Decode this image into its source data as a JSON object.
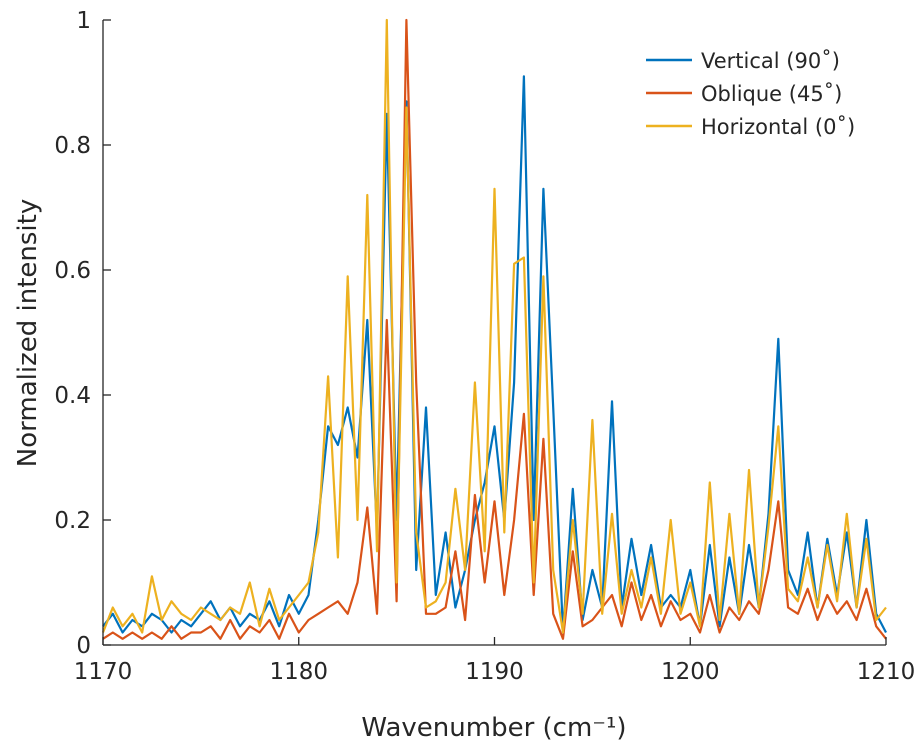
{
  "chart_data": {
    "type": "line",
    "xlabel": "Wavenumber (cm⁻¹)",
    "ylabel": "Normalized intensity",
    "xlim": [
      1170,
      1210
    ],
    "ylim": [
      0,
      1
    ],
    "x_ticks": [
      "1170",
      "1180",
      "1190",
      "1200",
      "1210"
    ],
    "y_ticks": [
      "0",
      "0.2",
      "0.4",
      "0.6",
      "0.8",
      "1"
    ],
    "grid": false,
    "legend_position": "top-right",
    "x": [
      1170,
      1170.5,
      1171,
      1171.5,
      1172,
      1172.5,
      1173,
      1173.5,
      1174,
      1174.5,
      1175,
      1175.5,
      1176,
      1176.5,
      1177,
      1177.5,
      1178,
      1178.5,
      1179,
      1179.5,
      1180,
      1180.5,
      1181,
      1181.5,
      1182,
      1182.5,
      1183,
      1183.5,
      1184,
      1184.5,
      1185,
      1185.5,
      1186,
      1186.5,
      1187,
      1187.5,
      1188,
      1188.5,
      1189,
      1189.5,
      1190,
      1190.5,
      1191,
      1191.5,
      1192,
      1192.5,
      1193,
      1193.5,
      1194,
      1194.5,
      1195,
      1195.5,
      1196,
      1196.5,
      1197,
      1197.5,
      1198,
      1198.5,
      1199,
      1199.5,
      1200,
      1200.5,
      1201,
      1201.5,
      1202,
      1202.5,
      1203,
      1203.5,
      1204,
      1204.5,
      1205,
      1205.5,
      1206,
      1206.5,
      1207,
      1207.5,
      1208,
      1208.5,
      1209,
      1209.5,
      1210
    ],
    "series": [
      {
        "name": "Vertical (90˚)",
        "color": "#0072BD",
        "values": [
          0.03,
          0.05,
          0.02,
          0.04,
          0.03,
          0.05,
          0.04,
          0.02,
          0.04,
          0.03,
          0.05,
          0.07,
          0.04,
          0.06,
          0.03,
          0.05,
          0.04,
          0.07,
          0.03,
          0.08,
          0.05,
          0.08,
          0.2,
          0.35,
          0.32,
          0.38,
          0.3,
          0.52,
          0.18,
          0.85,
          0.2,
          0.87,
          0.12,
          0.38,
          0.08,
          0.18,
          0.06,
          0.12,
          0.2,
          0.26,
          0.35,
          0.2,
          0.42,
          0.91,
          0.2,
          0.73,
          0.38,
          0.02,
          0.25,
          0.04,
          0.12,
          0.06,
          0.39,
          0.06,
          0.17,
          0.08,
          0.16,
          0.06,
          0.08,
          0.06,
          0.12,
          0.03,
          0.16,
          0.03,
          0.14,
          0.05,
          0.16,
          0.06,
          0.21,
          0.49,
          0.12,
          0.08,
          0.18,
          0.06,
          0.17,
          0.08,
          0.18,
          0.06,
          0.2,
          0.05,
          0.02
        ]
      },
      {
        "name": "Oblique (45˚)",
        "color": "#D95319",
        "values": [
          0.01,
          0.02,
          0.01,
          0.02,
          0.01,
          0.02,
          0.01,
          0.03,
          0.01,
          0.02,
          0.02,
          0.03,
          0.01,
          0.04,
          0.01,
          0.03,
          0.02,
          0.04,
          0.01,
          0.05,
          0.02,
          0.04,
          0.05,
          0.06,
          0.07,
          0.05,
          0.1,
          0.22,
          0.05,
          0.52,
          0.07,
          1.0,
          0.42,
          0.05,
          0.05,
          0.06,
          0.15,
          0.04,
          0.24,
          0.1,
          0.23,
          0.08,
          0.2,
          0.37,
          0.08,
          0.33,
          0.05,
          0.01,
          0.15,
          0.03,
          0.04,
          0.06,
          0.08,
          0.03,
          0.1,
          0.04,
          0.08,
          0.03,
          0.07,
          0.04,
          0.05,
          0.02,
          0.08,
          0.02,
          0.06,
          0.04,
          0.07,
          0.05,
          0.12,
          0.23,
          0.06,
          0.05,
          0.09,
          0.04,
          0.08,
          0.05,
          0.07,
          0.04,
          0.09,
          0.03,
          0.01
        ]
      },
      {
        "name": "Horizontal (0˚)",
        "color": "#EDB120",
        "values": [
          0.02,
          0.06,
          0.03,
          0.05,
          0.02,
          0.11,
          0.04,
          0.07,
          0.05,
          0.04,
          0.06,
          0.05,
          0.04,
          0.06,
          0.05,
          0.1,
          0.03,
          0.09,
          0.04,
          0.06,
          0.08,
          0.1,
          0.18,
          0.43,
          0.14,
          0.59,
          0.2,
          0.72,
          0.15,
          1.0,
          0.1,
          0.86,
          0.18,
          0.06,
          0.07,
          0.1,
          0.25,
          0.12,
          0.42,
          0.15,
          0.73,
          0.18,
          0.61,
          0.62,
          0.1,
          0.59,
          0.12,
          0.02,
          0.2,
          0.05,
          0.36,
          0.05,
          0.21,
          0.05,
          0.12,
          0.06,
          0.14,
          0.05,
          0.2,
          0.05,
          0.1,
          0.03,
          0.26,
          0.04,
          0.21,
          0.05,
          0.28,
          0.06,
          0.19,
          0.35,
          0.09,
          0.07,
          0.14,
          0.06,
          0.16,
          0.07,
          0.21,
          0.06,
          0.17,
          0.04,
          0.06
        ]
      }
    ]
  }
}
